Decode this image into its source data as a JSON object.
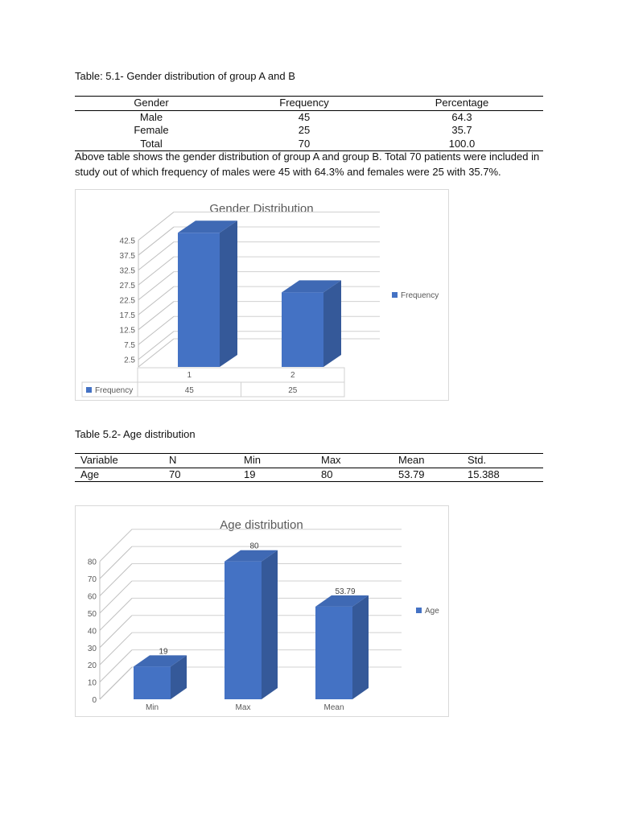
{
  "table1": {
    "caption": "Table: 5.1- Gender distribution of group A and B",
    "headers": [
      "Gender",
      "Frequency",
      "Percentage"
    ],
    "rows": [
      [
        "Male",
        "45",
        "64.3"
      ],
      [
        "Female",
        "25",
        "35.7"
      ],
      [
        "Total",
        "70",
        "100.0"
      ]
    ]
  },
  "paragraph": "Above table shows the gender distribution of group A and group B. Total 70 patients were included in study out of which frequency of males were 45 with 64.3% and females were 25 with 35.7%.",
  "table2": {
    "caption": "Table 5.2- Age distribution",
    "headers": [
      "Variable",
      "N",
      "Min",
      "Max",
      "Mean",
      "Std."
    ],
    "rows": [
      [
        "Age",
        "70",
        "19",
        "80",
        "53.79",
        "15.388"
      ]
    ]
  },
  "chart_data": [
    {
      "type": "bar",
      "title": "Gender Distribution",
      "categories": [
        "1",
        "2"
      ],
      "series": [
        {
          "name": "Frequency",
          "values": [
            45,
            25
          ]
        }
      ],
      "data_table_values": [
        "45",
        "25"
      ],
      "yticks": [
        "2.5",
        "7.5",
        "12.5",
        "17.5",
        "22.5",
        "27.5",
        "32.5",
        "37.5",
        "42.5"
      ],
      "ylim": [
        0,
        47.5
      ],
      "legend": "right",
      "grid": true,
      "color": "#4472C4"
    },
    {
      "type": "bar",
      "title": "Age distribution",
      "categories": [
        "Min",
        "Max",
        "Mean"
      ],
      "series": [
        {
          "name": "Age",
          "values": [
            19,
            80,
            53.79
          ]
        }
      ],
      "data_labels": [
        "19",
        "80",
        "53.79"
      ],
      "yticks": [
        "0",
        "10",
        "20",
        "30",
        "40",
        "50",
        "60",
        "70",
        "80"
      ],
      "ylim": [
        0,
        85
      ],
      "legend": "right",
      "grid": true,
      "color": "#4472C4"
    }
  ]
}
